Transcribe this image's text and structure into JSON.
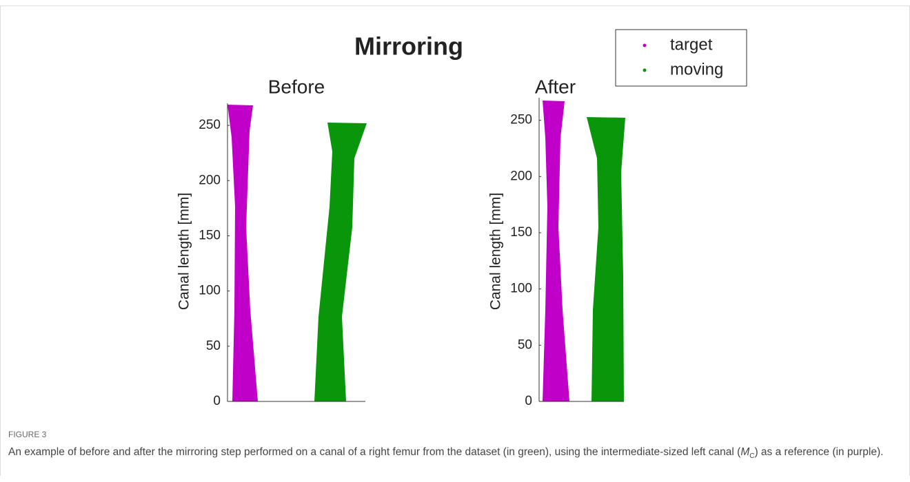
{
  "figure": {
    "title": "Mirroring",
    "legend": [
      "target",
      "moving"
    ],
    "legend_colors": [
      "#c000c8",
      "#0a960a"
    ],
    "ylabel": "Canal length [mm]",
    "panels": [
      {
        "title": "Before",
        "ylim": [
          0,
          270
        ],
        "yticks": [
          0,
          50,
          100,
          150,
          200,
          250
        ]
      },
      {
        "title": "After",
        "ylim": [
          0,
          270
        ],
        "yticks": [
          0,
          50,
          100,
          150,
          200,
          250
        ]
      }
    ]
  },
  "caption": {
    "label": "FIGURE 3",
    "text_before": "An example of before and after the mirroring step performed on a canal of a right femur from the dataset (in green), using the intermediate-sized left canal (",
    "symbol": "M",
    "subscript": "C",
    "text_after": ") as a reference (in purple)."
  }
}
